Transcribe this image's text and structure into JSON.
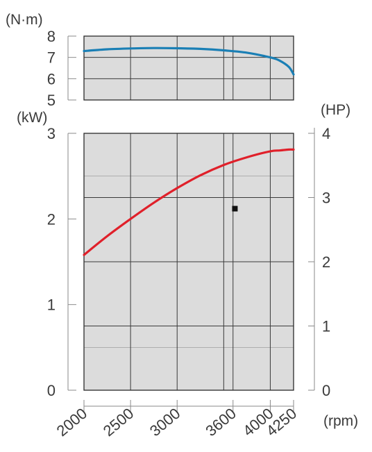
{
  "chart_data": {
    "type": "line",
    "x_axis": {
      "label": "(rpm)",
      "range": [
        2000,
        4250
      ],
      "ticks": [
        2000,
        2500,
        3000,
        3600,
        4000,
        4250
      ],
      "grid_lines": [
        2000,
        2500,
        3000,
        3500,
        3600,
        4000,
        4250
      ],
      "tick_labels_rotated": true
    },
    "torque_axis": {
      "label": "(N·m)",
      "range": [
        5,
        8
      ],
      "ticks": [
        "5",
        "6",
        "7",
        "8"
      ]
    },
    "power_kw_axis": {
      "label": "(kW)",
      "range": [
        0,
        3
      ],
      "ticks": [
        "0",
        "1",
        "2",
        "3"
      ]
    },
    "power_hp_axis": {
      "label": "(HP)",
      "range": [
        0,
        4
      ],
      "ticks": [
        "0",
        "1",
        "2",
        "3",
        "4"
      ]
    },
    "grid": true,
    "series": [
      {
        "key": "torque",
        "axis": "torque",
        "color": "#1a7fb5",
        "x": [
          2000,
          2250,
          2500,
          2750,
          3000,
          3250,
          3500,
          3750,
          4000,
          4100,
          4200,
          4250
        ],
        "y": [
          7.3,
          7.38,
          7.42,
          7.44,
          7.43,
          7.4,
          7.33,
          7.22,
          7.0,
          6.85,
          6.55,
          6.2
        ]
      },
      {
        "key": "power",
        "axis": "kw",
        "color": "#e0202a",
        "x": [
          2000,
          2250,
          2500,
          2750,
          3000,
          3250,
          3500,
          3750,
          4000,
          4100,
          4200,
          4250
        ],
        "y": [
          1.58,
          1.8,
          2.0,
          2.19,
          2.36,
          2.51,
          2.63,
          2.72,
          2.79,
          2.8,
          2.81,
          2.81
        ]
      }
    ],
    "marker": {
      "x": 3620,
      "y_kw": 2.12,
      "color": "#111111"
    }
  }
}
